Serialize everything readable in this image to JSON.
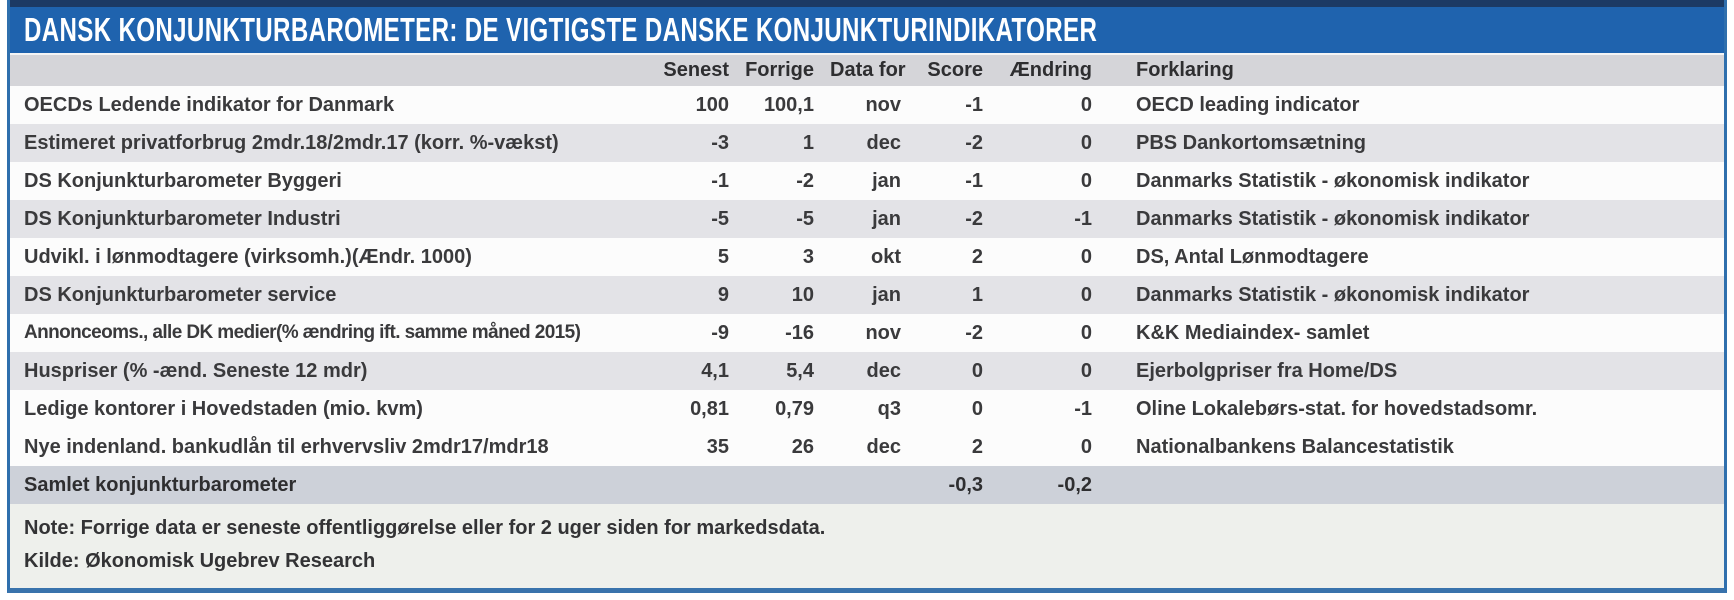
{
  "title": "Dansk Konjunkturbarometer: De vigtigste danske konjunkturindikatorer",
  "columns": [
    "Senest",
    "Forrige",
    "Data for",
    "Score",
    "Ændring",
    "Forklaring"
  ],
  "rows": [
    {
      "name": "OECDs Ledende indikator for Danmark",
      "senest": "100",
      "forrige": "100,1",
      "data_for": "nov",
      "score": "-1",
      "aendring": "0",
      "forklaring": "OECD leading indicator",
      "shaded": false
    },
    {
      "name": "Estimeret privatforbrug 2mdr.18/2mdr.17 (korr. %-vækst)",
      "senest": "-3",
      "forrige": "1",
      "data_for": "dec",
      "score": "-2",
      "aendring": "0",
      "forklaring": "PBS Dankortomsætning",
      "shaded": true
    },
    {
      "name": "DS Konjunkturbarometer Byggeri",
      "senest": "-1",
      "forrige": "-2",
      "data_for": "jan",
      "score": "-1",
      "aendring": "0",
      "forklaring": "Danmarks Statistik - økonomisk indikator",
      "shaded": false
    },
    {
      "name": "DS Konjunkturbarometer Industri",
      "senest": "-5",
      "forrige": "-5",
      "data_for": "jan",
      "score": "-2",
      "aendring": "-1",
      "forklaring": "Danmarks Statistik - økonomisk indikator",
      "shaded": true
    },
    {
      "name": "Udvikl. i lønmodtagere (virksomh.)(Ændr. 1000)",
      "senest": "5",
      "forrige": "3",
      "data_for": "okt",
      "score": "2",
      "aendring": "0",
      "forklaring": "DS, Antal Lønmodtagere",
      "shaded": false
    },
    {
      "name": "DS Konjunkturbarometer service",
      "senest": "9",
      "forrige": "10",
      "data_for": "jan",
      "score": "1",
      "aendring": "0",
      "forklaring": "Danmarks Statistik - økonomisk indikator",
      "shaded": true
    },
    {
      "name": "Annonceoms., alle DK medier(% ændring ift. samme måned 2015)",
      "senest": "-9",
      "forrige": "-16",
      "data_for": "nov",
      "score": "-2",
      "aendring": "0",
      "forklaring": "K&K Mediaindex- samlet",
      "shaded": false
    },
    {
      "name": "Huspriser (% -ænd. Seneste 12 mdr)",
      "senest": "4,1",
      "forrige": "5,4",
      "data_for": "dec",
      "score": "0",
      "aendring": "0",
      "forklaring": "Ejerbolgpriser fra Home/DS",
      "shaded": true
    },
    {
      "name": "Ledige kontorer i Hovedstaden (mio. kvm)",
      "senest": "0,81",
      "forrige": "0,79",
      "data_for": "q3",
      "score": "0",
      "aendring": "-1",
      "forklaring": "Oline Lokalebørs-stat. for hovedstadsomr.",
      "shaded": false
    },
    {
      "name": "Nye indenland. bankudlån til erhvervsliv 2mdr17/mdr18",
      "senest": "35",
      "forrige": "26",
      "data_for": "dec",
      "score": "2",
      "aendring": "0",
      "forklaring": "Nationalbankens Balancestatistik",
      "shaded": false
    }
  ],
  "summary": {
    "name": "Samlet konjunkturbarometer",
    "score": "-0,3",
    "aendring": "-0,2"
  },
  "notes": {
    "note": "Note: Forrige data er seneste offentliggørelse eller for 2 uger siden for markedsdata.",
    "source": "Kilde: Økonomisk Ugebrev Research"
  },
  "colors": {
    "title_bar": "#1f63ae",
    "top_strip": "#1c3a64",
    "frame_border": "#2f6fad",
    "header_bg": "#d5d5d9",
    "stripe_bg": "#e3e3e7",
    "summary_bg": "#cdd1d9",
    "notes_bg": "#eef0ec",
    "text": "#3a3a3c"
  }
}
